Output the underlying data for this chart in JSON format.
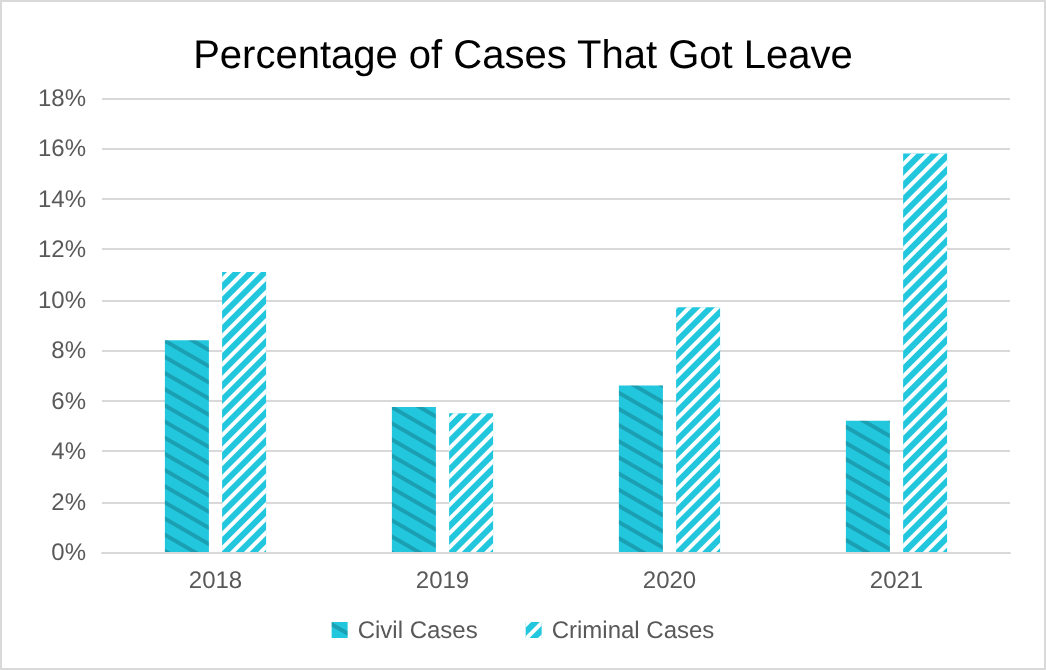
{
  "chart_data": {
    "type": "bar",
    "title": "Percentage of Cases That Got Leave",
    "categories": [
      "2018",
      "2019",
      "2020",
      "2021"
    ],
    "series": [
      {
        "name": "Civil Cases",
        "color": "#22c7de",
        "values": [
          8.4,
          5.75,
          6.6,
          5.2
        ]
      },
      {
        "name": "Criminal Cases",
        "color": "#22c7de",
        "values": [
          11.1,
          5.5,
          9.7,
          15.8
        ]
      }
    ],
    "ylim": [
      0,
      18
    ],
    "yticks": [
      {
        "value": 0,
        "label": "0%"
      },
      {
        "value": 2,
        "label": "2%"
      },
      {
        "value": 4,
        "label": "4%"
      },
      {
        "value": 6,
        "label": "6%"
      },
      {
        "value": 8,
        "label": "8%"
      },
      {
        "value": 10,
        "label": "10%"
      },
      {
        "value": 12,
        "label": "12%"
      },
      {
        "value": 14,
        "label": "14%"
      },
      {
        "value": 16,
        "label": "16%"
      },
      {
        "value": 18,
        "label": "18%"
      }
    ],
    "grid": "y",
    "legend": "bottom"
  }
}
